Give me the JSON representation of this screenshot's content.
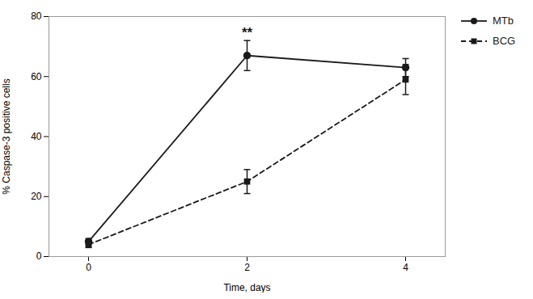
{
  "chart_data": {
    "type": "line",
    "x": [
      0,
      2,
      4
    ],
    "xlim": [
      -0.5,
      4.5
    ],
    "xticks": [
      0,
      2,
      4
    ],
    "ylim": [
      0,
      80
    ],
    "yticks": [
      0,
      20,
      40,
      60,
      80
    ],
    "xlabel": "Time, days",
    "ylabel": "% Caspase-3 positive cells",
    "grid": false,
    "legend": "right",
    "series": [
      {
        "name": "MTb",
        "color": "#1a1a1a",
        "values": [
          5,
          67,
          63
        ],
        "errors": [
          1,
          5,
          3
        ],
        "marker": "circle",
        "line_style": "solid"
      },
      {
        "name": "BCG",
        "color": "#1a1a1a",
        "values": [
          4,
          25,
          59
        ],
        "errors": [
          1,
          4,
          5
        ],
        "marker": "square",
        "line_style": "dashed"
      }
    ],
    "annotations": [
      {
        "text": "**",
        "x": 2,
        "y": 73,
        "color": "#1a1a1a"
      }
    ]
  }
}
